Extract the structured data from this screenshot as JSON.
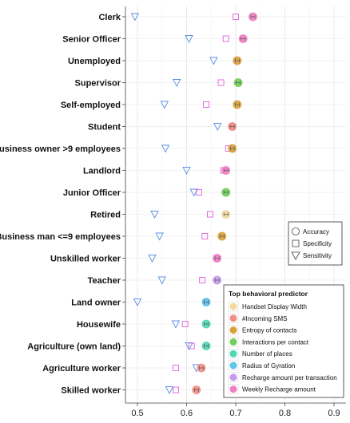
{
  "chart_data": {
    "type": "scatter",
    "title": "",
    "xlabel": "",
    "ylabel": "",
    "xlim": [
      0.47,
      0.91
    ],
    "x_ticks": [
      0.5,
      0.6,
      0.7,
      0.8,
      0.9
    ],
    "x_tick_labels": [
      "0.5",
      "0.6",
      "0.7",
      "0.8",
      "0.9"
    ],
    "grid": true,
    "categories": [
      "Clerk",
      "Senior Officer",
      "Unemployed",
      "Supervisor",
      "Self-employed",
      "Student",
      "Business owner >9 employees",
      "Landlord",
      "Junior Officer",
      "Retired",
      "Business man <=9 employees",
      "Unskilled worker",
      "Teacher",
      "Land owner",
      "Housewife",
      "Agriculture (own land)",
      "Agriculture worker",
      "Skilled worker"
    ],
    "series": [
      {
        "name": "Accuracy",
        "marker": "circle",
        "values": [
          0.735,
          0.715,
          0.703,
          0.705,
          0.703,
          0.693,
          0.693,
          0.68,
          0.68,
          0.68,
          0.672,
          0.662,
          0.662,
          0.64,
          0.64,
          0.64,
          0.63,
          0.62
        ]
      },
      {
        "name": "Specificity",
        "marker": "square",
        "values": [
          0.7,
          0.68,
          0.703,
          0.67,
          0.64,
          0.693,
          0.685,
          0.675,
          0.625,
          0.648,
          0.637,
          0.662,
          0.632,
          0.64,
          0.597,
          0.61,
          0.578,
          0.578
        ]
      },
      {
        "name": "Sensitivity",
        "marker": "triangle-down",
        "values": [
          0.495,
          0.605,
          0.655,
          0.58,
          0.555,
          0.663,
          0.557,
          0.6,
          0.615,
          0.535,
          0.545,
          0.53,
          0.55,
          0.5,
          0.578,
          0.605,
          0.62,
          0.565
        ]
      }
    ],
    "predictor": [
      "Weekly Recharge amount",
      "Weekly Recharge amount",
      "Entropy of contacts",
      "Interactions per contact",
      "Entropy of contacts",
      "#Incoming SMS",
      "Entropy of contacts",
      "Weekly Recharge amount",
      "Interactions per contact",
      "Handset Display Width",
      "Entropy of contacts",
      "Weekly Recharge amount",
      "Recharge amount per transaction",
      "Radius of Gyration",
      "Number of places",
      "Number of places",
      "#Incoming SMS",
      "#Incoming SMS"
    ],
    "marker_legend": {
      "placement": "right",
      "entries": [
        {
          "label": "Accuracy",
          "marker": "circle"
        },
        {
          "label": "Specificity",
          "marker": "square"
        },
        {
          "label": "Sensitivity",
          "marker": "triangle-down"
        }
      ]
    },
    "predictor_legend": {
      "placement": "bottom-right",
      "title": "Top behavioral predictor",
      "entries": [
        {
          "label": "Handset Display Width",
          "color": "#f3d9a0"
        },
        {
          "label": "#Incoming SMS",
          "color": "#f08f85"
        },
        {
          "label": "Entropy of contacts",
          "color": "#d9a13a"
        },
        {
          "label": "Interactions per contact",
          "color": "#6fd05a"
        },
        {
          "label": "Number of places",
          "color": "#4fd6b0"
        },
        {
          "label": "Radius of Gyration",
          "color": "#5cc5e8"
        },
        {
          "label": "Recharge amount per transaction",
          "color": "#c79af0"
        },
        {
          "label": "Weekly Recharge amount",
          "color": "#f07fc4"
        }
      ]
    },
    "marker_outline_colors": {
      "specificity": "#e05fe0",
      "sensitivity": "#5b8fe6"
    }
  }
}
